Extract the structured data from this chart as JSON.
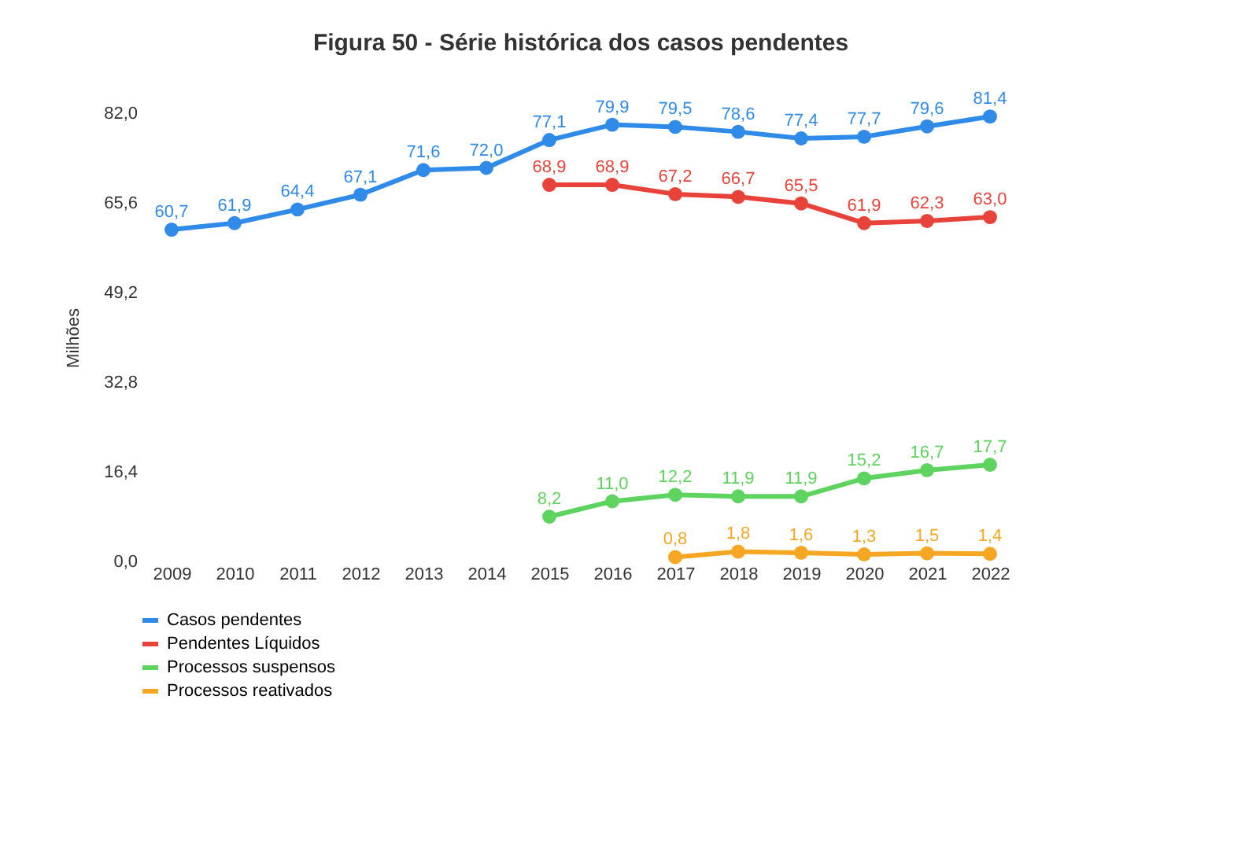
{
  "chart_data": {
    "type": "line",
    "title": "Figura 50 - Série histórica dos casos pendentes",
    "ylabel": "Milhões",
    "categories": [
      "2009",
      "2010",
      "2011",
      "2012",
      "2013",
      "2014",
      "2015",
      "2016",
      "2017",
      "2018",
      "2019",
      "2020",
      "2021",
      "2022"
    ],
    "series": [
      {
        "name": "Casos pendentes",
        "color": "#2f8ae8",
        "values": [
          60.7,
          61.9,
          64.4,
          67.1,
          71.6,
          72.0,
          77.1,
          79.9,
          79.5,
          78.6,
          77.4,
          77.7,
          79.6,
          81.4
        ],
        "value_labels": [
          "60,7",
          "61,9",
          "64,4",
          "67,1",
          "71,6",
          "72,0",
          "77,1",
          "79,9",
          "79,5",
          "78,6",
          "77,4",
          "77,7",
          "79,6",
          "81,4"
        ]
      },
      {
        "name": "Pendentes Líquidos",
        "color": "#e8433a",
        "values": [
          null,
          null,
          null,
          null,
          null,
          null,
          68.9,
          68.9,
          67.2,
          66.7,
          65.5,
          61.9,
          62.3,
          63.0
        ],
        "value_labels": [
          null,
          null,
          null,
          null,
          null,
          null,
          "68,9",
          "68,9",
          "67,2",
          "66,7",
          "65,5",
          "61,9",
          "62,3",
          "63,0"
        ]
      },
      {
        "name": "Processos suspensos",
        "color": "#5fd35f",
        "values": [
          null,
          null,
          null,
          null,
          null,
          null,
          8.2,
          11.0,
          12.2,
          11.9,
          11.9,
          15.2,
          16.7,
          17.7
        ],
        "value_labels": [
          null,
          null,
          null,
          null,
          null,
          null,
          "8,2",
          "11,0",
          "12,2",
          "11,9",
          "11,9",
          "15,2",
          "16,7",
          "17,7"
        ]
      },
      {
        "name": "Processos reativados",
        "color": "#f5a623",
        "values": [
          null,
          null,
          null,
          null,
          null,
          null,
          null,
          null,
          0.8,
          1.8,
          1.6,
          1.3,
          1.5,
          1.4
        ],
        "value_labels": [
          null,
          null,
          null,
          null,
          null,
          null,
          null,
          null,
          "0,8",
          "1,8",
          "1,6",
          "1,3",
          "1,5",
          "1,4"
        ]
      }
    ],
    "ylim": [
      0,
      82
    ],
    "yticks": [
      {
        "value": 0,
        "label": "0,0"
      },
      {
        "value": 16.4,
        "label": "16,4"
      },
      {
        "value": 32.8,
        "label": "32,8"
      },
      {
        "value": 49.2,
        "label": "49,2"
      },
      {
        "value": 65.6,
        "label": "65,6"
      },
      {
        "value": 82,
        "label": "82,0"
      }
    ],
    "grid": false,
    "legend": "bottom",
    "marker": "circle",
    "line_style": "solid"
  }
}
